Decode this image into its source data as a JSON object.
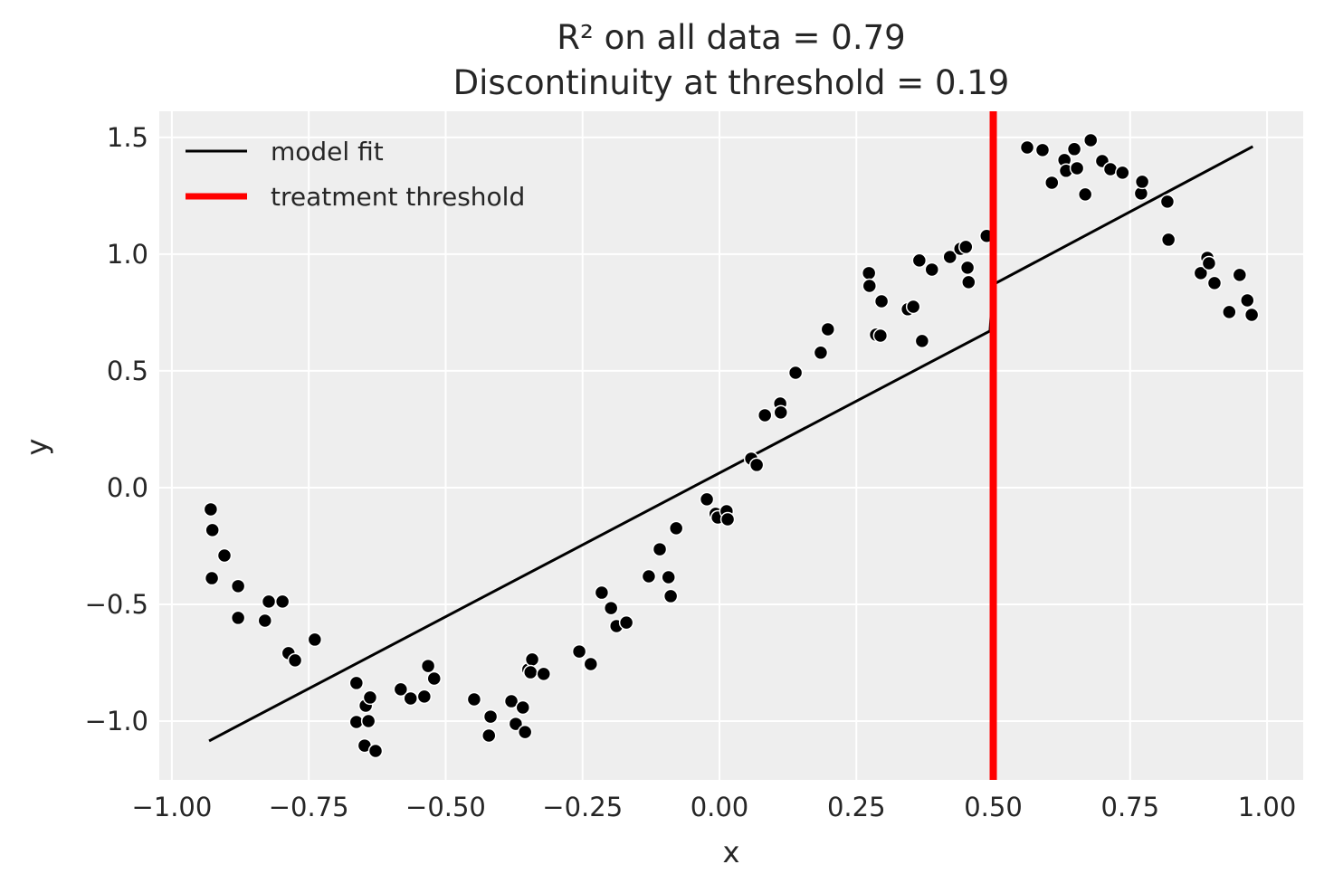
{
  "chart_data": {
    "type": "scatter",
    "title_lines": [
      "R² on all data = 0.79",
      "Discontinuity at threshold = 0.19"
    ],
    "xlabel": "x",
    "ylabel": "y",
    "xlim": [
      -1.023,
      1.066
    ],
    "ylim": [
      -1.252,
      1.612
    ],
    "xticks": [
      -1.0,
      -0.75,
      -0.5,
      -0.25,
      0.0,
      0.25,
      0.5,
      0.75,
      1.0
    ],
    "xtick_labels": [
      "−1.00",
      "−0.75",
      "−0.50",
      "−0.25",
      "0.00",
      "0.25",
      "0.50",
      "0.75",
      "1.00"
    ],
    "yticks": [
      -1.0,
      -0.5,
      0.0,
      0.5,
      1.0,
      1.5
    ],
    "ytick_labels": [
      "−1.0",
      "−0.5",
      "0.0",
      "0.5",
      "1.0",
      "1.5"
    ],
    "grid": true,
    "legend_position": "top-left",
    "background_color": "#eeeeee",
    "points_color": "#000000",
    "points": [
      [
        -0.929,
        -0.093
      ],
      [
        -0.926,
        -0.182
      ],
      [
        -0.904,
        -0.291
      ],
      [
        -0.927,
        -0.388
      ],
      [
        -0.879,
        -0.422
      ],
      [
        -0.879,
        -0.558
      ],
      [
        -0.83,
        -0.57
      ],
      [
        -0.823,
        -0.488
      ],
      [
        -0.798,
        -0.488
      ],
      [
        -0.787,
        -0.709
      ],
      [
        -0.775,
        -0.74
      ],
      [
        -0.739,
        -0.651
      ],
      [
        -0.663,
        -0.837
      ],
      [
        -0.663,
        -1.004
      ],
      [
        -0.646,
        -0.934
      ],
      [
        -0.638,
        -0.899
      ],
      [
        -0.641,
        -1.0
      ],
      [
        -0.648,
        -1.105
      ],
      [
        -0.628,
        -1.128
      ],
      [
        -0.582,
        -0.864
      ],
      [
        -0.564,
        -0.903
      ],
      [
        -0.539,
        -0.895
      ],
      [
        -0.532,
        -0.764
      ],
      [
        -0.521,
        -0.818
      ],
      [
        -0.448,
        -0.907
      ],
      [
        -0.418,
        -0.981
      ],
      [
        -0.421,
        -1.062
      ],
      [
        -0.38,
        -0.915
      ],
      [
        -0.372,
        -1.012
      ],
      [
        -0.359,
        -0.942
      ],
      [
        -0.355,
        -1.047
      ],
      [
        -0.349,
        -0.779
      ],
      [
        -0.342,
        -0.736
      ],
      [
        -0.345,
        -0.791
      ],
      [
        -0.321,
        -0.798
      ],
      [
        -0.256,
        -0.702
      ],
      [
        -0.235,
        -0.756
      ],
      [
        -0.215,
        -0.45
      ],
      [
        -0.198,
        -0.516
      ],
      [
        -0.188,
        -0.593
      ],
      [
        -0.17,
        -0.578
      ],
      [
        -0.129,
        -0.38
      ],
      [
        -0.109,
        -0.264
      ],
      [
        -0.093,
        -0.384
      ],
      [
        -0.089,
        -0.465
      ],
      [
        -0.079,
        -0.174
      ],
      [
        -0.023,
        -0.05
      ],
      [
        -0.007,
        -0.112
      ],
      [
        -0.003,
        -0.128
      ],
      [
        0.013,
        -0.101
      ],
      [
        0.015,
        -0.136
      ],
      [
        0.058,
        0.124
      ],
      [
        0.068,
        0.097
      ],
      [
        0.083,
        0.31
      ],
      [
        0.111,
        0.36
      ],
      [
        0.112,
        0.322
      ],
      [
        0.139,
        0.492
      ],
      [
        0.185,
        0.578
      ],
      [
        0.198,
        0.678
      ],
      [
        0.273,
        0.919
      ],
      [
        0.274,
        0.864
      ],
      [
        0.286,
        0.655
      ],
      [
        0.294,
        0.651
      ],
      [
        0.296,
        0.798
      ],
      [
        0.344,
        0.764
      ],
      [
        0.354,
        0.775
      ],
      [
        0.365,
        0.973
      ],
      [
        0.37,
        0.628
      ],
      [
        0.388,
        0.934
      ],
      [
        0.421,
        0.988
      ],
      [
        0.44,
        1.023
      ],
      [
        0.45,
        1.031
      ],
      [
        0.453,
        0.942
      ],
      [
        0.455,
        0.88
      ],
      [
        0.488,
        1.078
      ],
      [
        0.562,
        1.457
      ],
      [
        0.59,
        1.446
      ],
      [
        0.607,
        1.306
      ],
      [
        0.63,
        1.403
      ],
      [
        0.633,
        1.357
      ],
      [
        0.648,
        1.45
      ],
      [
        0.653,
        1.368
      ],
      [
        0.668,
        1.256
      ],
      [
        0.678,
        1.488
      ],
      [
        0.699,
        1.399
      ],
      [
        0.714,
        1.364
      ],
      [
        0.736,
        1.349
      ],
      [
        0.77,
        1.26
      ],
      [
        0.772,
        1.31
      ],
      [
        0.818,
        1.225
      ],
      [
        0.82,
        1.062
      ],
      [
        0.879,
        0.919
      ],
      [
        0.891,
        0.984
      ],
      [
        0.894,
        0.961
      ],
      [
        0.904,
        0.876
      ],
      [
        0.931,
        0.752
      ],
      [
        0.95,
        0.911
      ],
      [
        0.964,
        0.802
      ],
      [
        0.972,
        0.74
      ]
    ],
    "series": [
      {
        "name": "model fit",
        "type": "line",
        "color": "#000000",
        "segments": [
          [
            [
              -0.932,
              -1.085
            ],
            [
              0.494,
              0.671
            ]
          ],
          [
            [
              0.5,
              0.87
            ],
            [
              0.974,
              1.461
            ]
          ]
        ]
      },
      {
        "name": "treatment threshold",
        "type": "vline",
        "color": "#ff0000",
        "x": 0.5
      }
    ],
    "legend": [
      "model fit",
      "treatment threshold"
    ]
  }
}
